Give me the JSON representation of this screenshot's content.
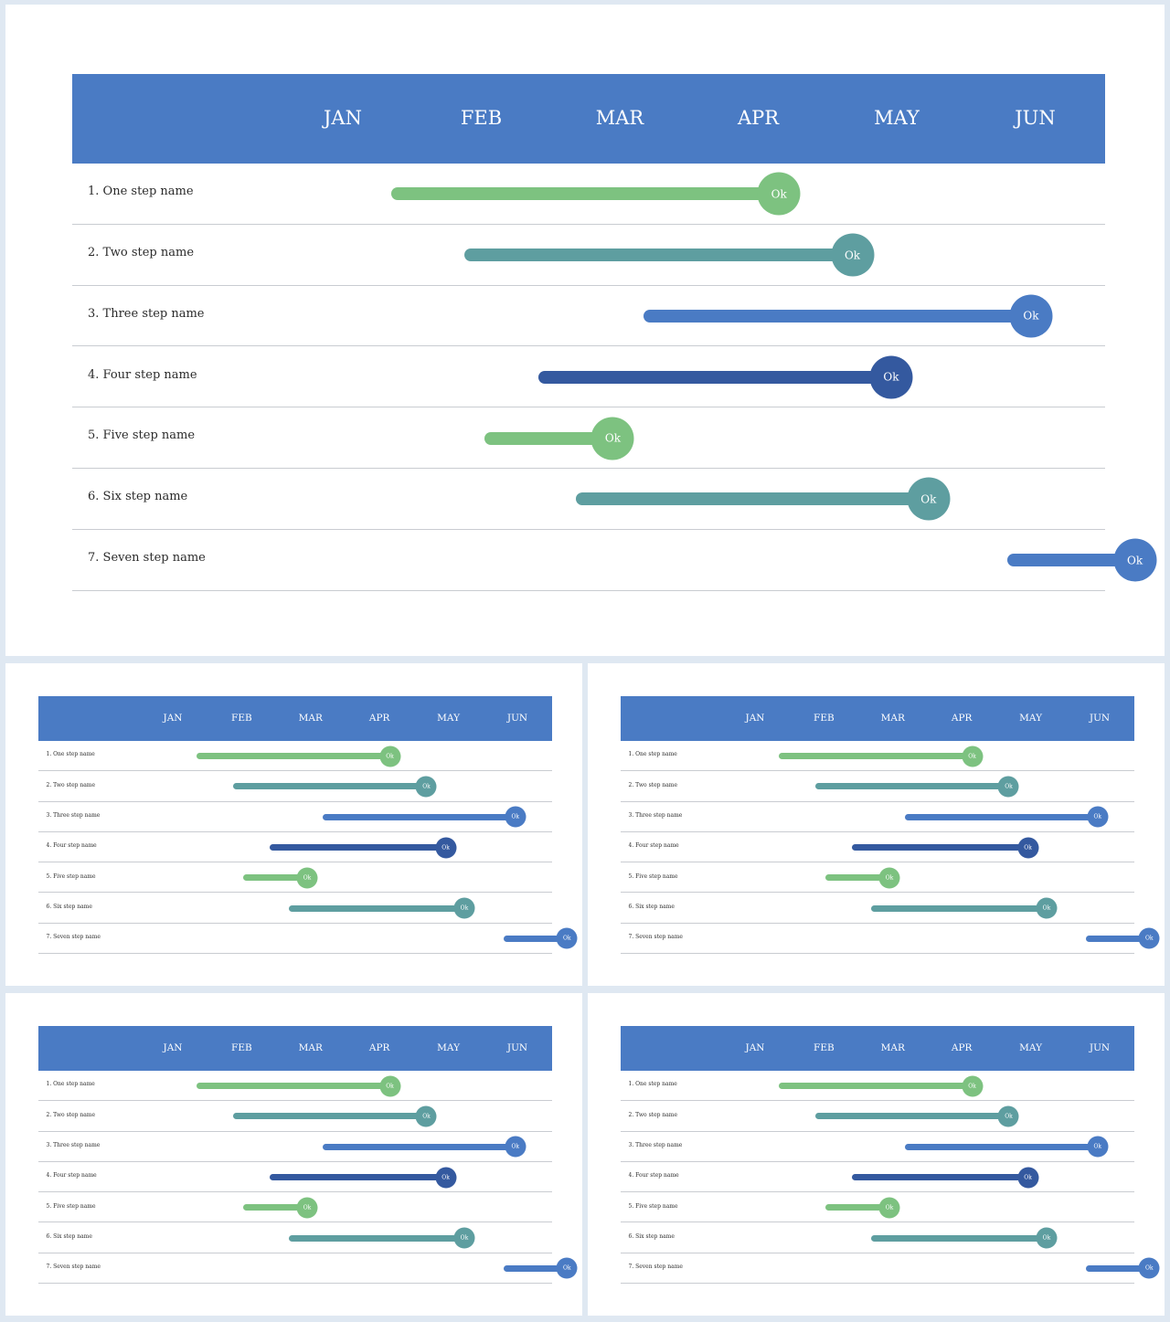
{
  "months": [
    "JAN",
    "FEB",
    "MAR",
    "APR",
    "MAY",
    "JUN"
  ],
  "ok_label": "Ok",
  "colors": {
    "header": "#4a7bc4",
    "green": "#7dc280",
    "teal": "#5e9ea0",
    "blue": "#4a7bc4",
    "navy": "#34599f"
  },
  "steps": [
    {
      "label": "1. One step name",
      "start": 0.85,
      "end": 3.65,
      "color": "green"
    },
    {
      "label": "2. Two step name",
      "start": 1.38,
      "end": 4.18,
      "color": "teal"
    },
    {
      "label": "3. Three step name",
      "start": 2.67,
      "end": 5.47,
      "color": "blue"
    },
    {
      "label": "4. Four step name",
      "start": 1.91,
      "end": 4.46,
      "color": "navy"
    },
    {
      "label": "5. Five step name",
      "start": 1.52,
      "end": 2.45,
      "color": "green"
    },
    {
      "label": "6. Six step name",
      "start": 2.18,
      "end": 4.73,
      "color": "teal"
    },
    {
      "label": "7. Seven step name",
      "start": 5.3,
      "end": 6.22,
      "color": "blue"
    }
  ]
}
